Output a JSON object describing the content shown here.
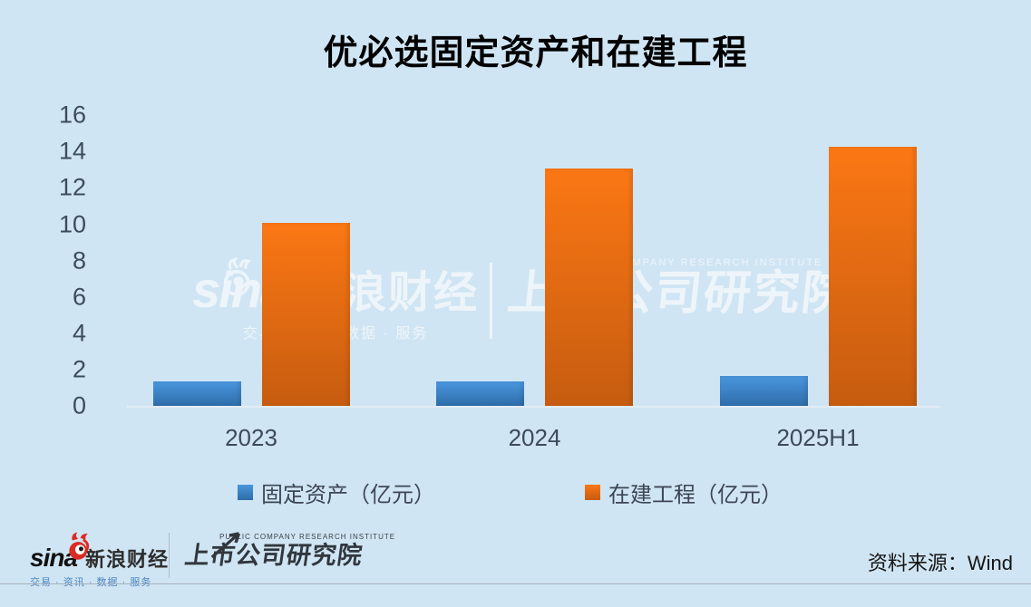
{
  "chart_data": {
    "type": "bar",
    "title": "优必选固定资产和在建工程",
    "categories": [
      "2023",
      "2024",
      "2025H1"
    ],
    "series": [
      {
        "name": "固定资产（亿元）",
        "values": [
          1.4,
          1.4,
          1.7
        ],
        "color_top": "#4a96de",
        "color_bottom": "#2e6ca8",
        "legend_color": "#3f88cc"
      },
      {
        "name": "在建工程（亿元）",
        "values": [
          10.1,
          13.1,
          14.3
        ],
        "color_top": "#fb7714",
        "color_bottom": "#c65c10",
        "legend_color": "#ea6a0e"
      }
    ],
    "xlabel": "",
    "ylabel": "",
    "ylim": [
      0,
      16
    ],
    "yticks": [
      0,
      2,
      4,
      6,
      8,
      10,
      12,
      14,
      16
    ],
    "grid": false,
    "legend_position": "bottom",
    "background": "#d0e5f3"
  },
  "watermark": {
    "sina": "sina",
    "brand": "新浪财经",
    "tagline": "交易 · 资讯 · 数据 · 服务",
    "institute_en": "PUBLIC COMPANY RESEARCH INSTITUTE",
    "institute_cn": "上市公司研究院"
  },
  "footer": {
    "sina_word": "sina",
    "sina_brand": "新浪财经",
    "sina_tagline": "交易 · 资讯 · 数据 · 服务",
    "institute_en": "PUBLIC COMPANY RESEARCH INSTITUTE",
    "institute_cn": "上市公司研究院",
    "source": "资料来源：Wind"
  }
}
